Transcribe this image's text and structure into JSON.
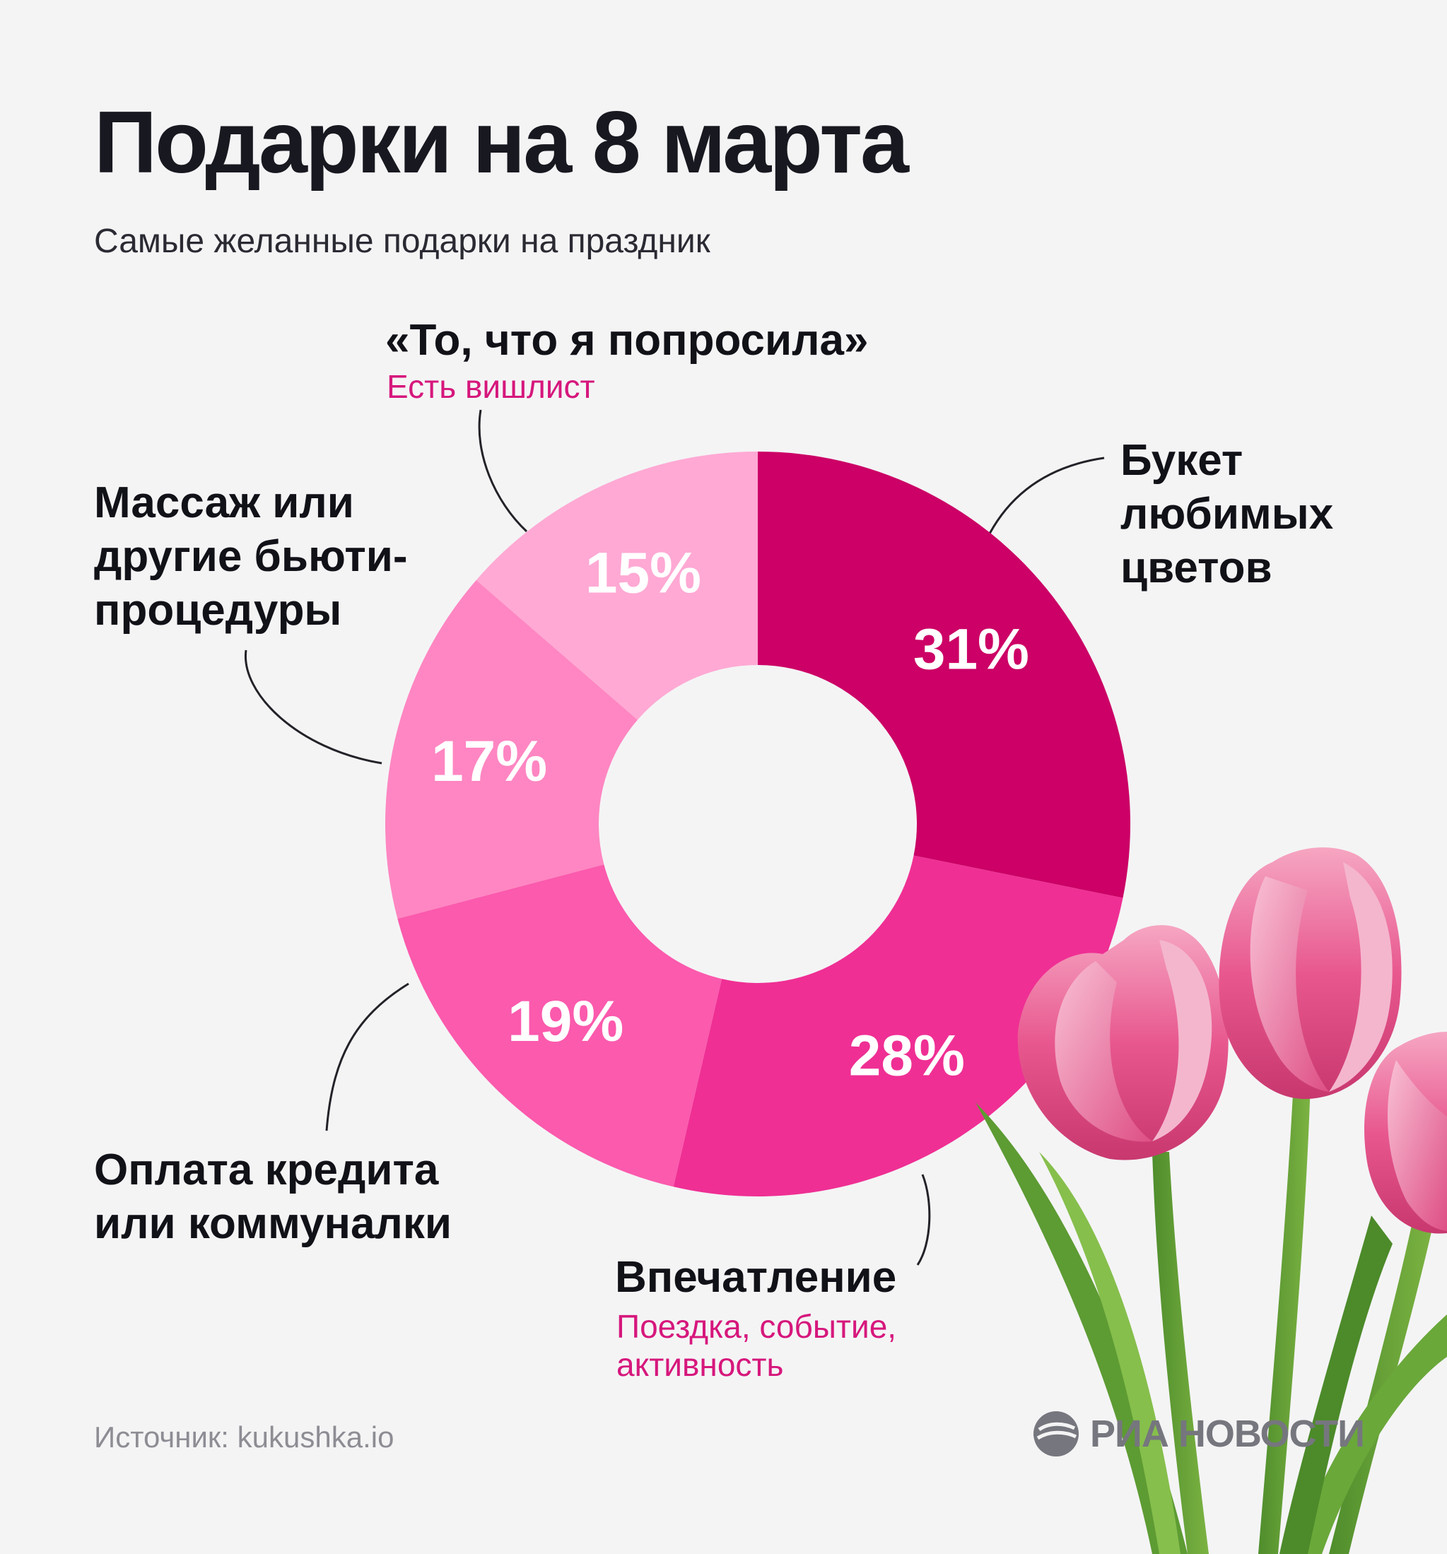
{
  "title": "Подарки на 8 марта",
  "subtitle": "Самые желанные подарки на праздник",
  "chart_data": {
    "type": "pie",
    "style": "donut",
    "categories": [
      "Букет любимых цветов",
      "Впечатление",
      "Оплата кредита или коммуналки",
      "Массаж или другие бьюти-процедуры",
      "«То, что я попросила»"
    ],
    "values": [
      31,
      28,
      19,
      17,
      15
    ],
    "value_labels": [
      "31%",
      "28%",
      "19%",
      "17%",
      "15%"
    ],
    "colors": [
      "#cc0066",
      "#ef2f94",
      "#fb5aad",
      "#ff86c2",
      "#ffa9d4"
    ],
    "annotations": {
      "wishlist": "Есть вишлист",
      "impression": "Поездка, событие, активность"
    }
  },
  "labels": {
    "flowers": [
      "Букет",
      "любимых",
      "цветов"
    ],
    "impression_title": "Впечатление",
    "impression_sub": [
      "Поездка, событие,",
      "активность"
    ],
    "credit": [
      "Оплата кредита",
      "или коммуналки"
    ],
    "massage": [
      "Массаж или",
      "другие бьюти-",
      "процедуры"
    ],
    "wish_title": "«То, что я попросила»",
    "wish_sub": "Есть вишлист"
  },
  "source": "Источник: kukushka.io",
  "logo": "РИА НОВОСТИ",
  "colors": {
    "accent": "#d6177c",
    "text": "#111118",
    "background": "#f4f4f5"
  }
}
